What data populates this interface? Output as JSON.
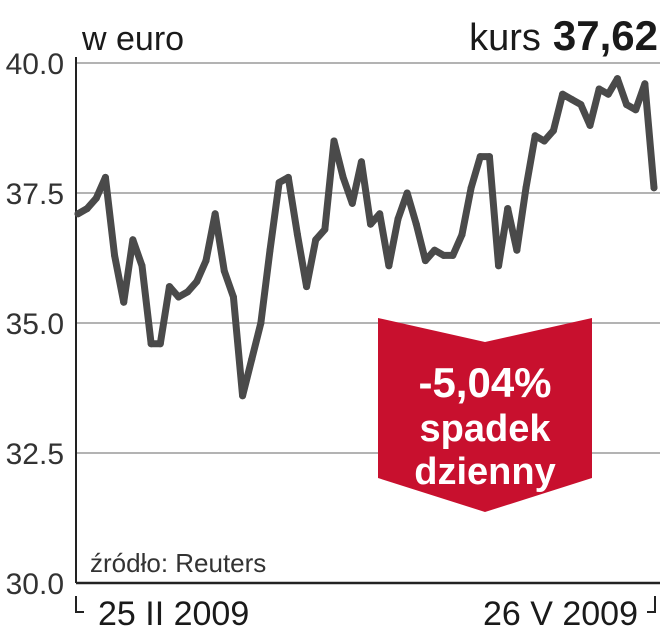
{
  "unit_label": "w euro",
  "kurs_label": "kurs",
  "kurs_value": "37,62",
  "source": "źródło: Reuters",
  "annotation": {
    "change": "-5,04%",
    "line1": "spadek",
    "line2": "dzienny",
    "color": "#c8102e"
  },
  "colors": {
    "line": "#4a4a4a",
    "grid": "#9a9a9a",
    "axis": "#222222"
  },
  "chart_data": {
    "type": "line",
    "title": "",
    "xlabel": "",
    "ylabel": "w euro",
    "ylim": [
      30.0,
      40.0
    ],
    "yticks": [
      "30.0",
      "32.5",
      "35.0",
      "37.5",
      "40.0"
    ],
    "x_labels": {
      "start": "25 II 2009",
      "end": "26 V 2009"
    },
    "grid": true,
    "series": [
      {
        "values": [
          37.1,
          37.2,
          37.4,
          37.8,
          36.3,
          35.4,
          36.6,
          36.1,
          34.6,
          34.6,
          35.7,
          35.5,
          35.6,
          35.8,
          36.2,
          37.1,
          36.0,
          35.5,
          33.6,
          34.3,
          35.0,
          36.4,
          37.7,
          37.8,
          36.7,
          35.7,
          36.6,
          36.8,
          38.5,
          37.8,
          37.3,
          38.1,
          36.9,
          37.1,
          36.1,
          37.0,
          37.5,
          36.9,
          36.2,
          36.4,
          36.3,
          36.3,
          36.7,
          37.6,
          38.2,
          38.2,
          36.1,
          37.2,
          36.4,
          37.6,
          38.6,
          38.5,
          38.7,
          39.4,
          39.3,
          39.2,
          38.8,
          39.5,
          39.4,
          39.7,
          39.2,
          39.1,
          39.6,
          37.6
        ]
      }
    ]
  }
}
